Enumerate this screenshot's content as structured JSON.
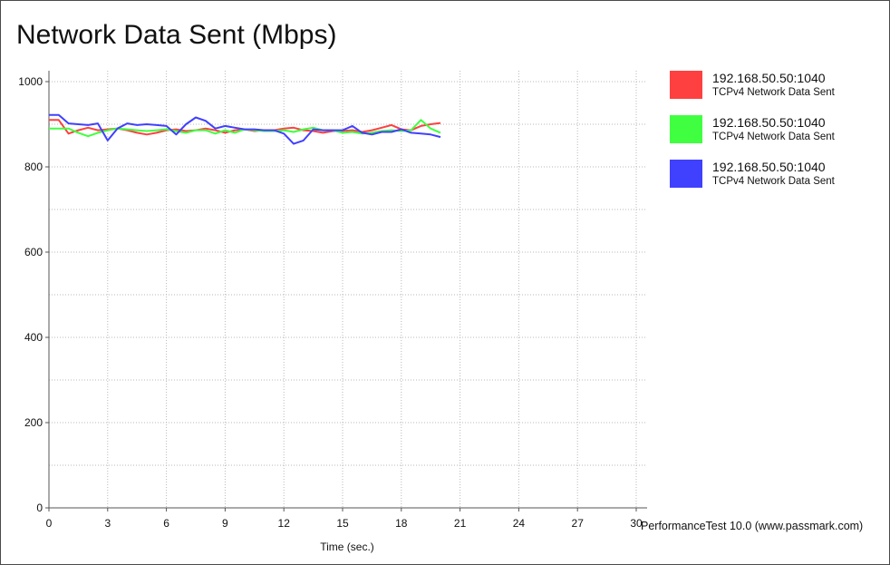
{
  "title": "Network Data Sent (Mbps)",
  "watermark": "PerformanceTest 10.0 (www.passmark.com)",
  "chart_data": {
    "type": "line",
    "title": "Network Data Sent (Mbps)",
    "xlabel": "Time (sec.)",
    "ylabel": "",
    "xlim": [
      0,
      30
    ],
    "ylim": [
      0,
      1000
    ],
    "xticks": [
      0,
      3,
      6,
      9,
      12,
      15,
      18,
      21,
      24,
      27,
      30
    ],
    "yticks": [
      0,
      200,
      400,
      600,
      800,
      1000
    ],
    "grid": true,
    "legend_position": "right",
    "series": [
      {
        "name": "192.168.50.50:1040",
        "description": "TCPv4 Network Data Sent",
        "color": "#ff4040",
        "x": [
          0,
          0.5,
          1,
          1.5,
          2,
          2.5,
          3,
          3.5,
          4,
          4.5,
          5,
          5.5,
          6,
          6.5,
          7,
          7.5,
          8,
          8.5,
          9,
          9.5,
          10,
          10.5,
          11,
          11.5,
          12,
          12.5,
          13,
          13.5,
          14,
          14.5,
          15,
          15.5,
          16,
          16.5,
          17,
          17.5,
          18,
          18.5,
          19,
          19.5,
          20
        ],
        "y": [
          910,
          910,
          878,
          886,
          892,
          886,
          888,
          890,
          886,
          880,
          876,
          880,
          886,
          888,
          884,
          886,
          890,
          886,
          880,
          886,
          888,
          884,
          886,
          886,
          890,
          892,
          886,
          884,
          880,
          884,
          884,
          886,
          882,
          886,
          892,
          898,
          888,
          886,
          896,
          900,
          903
        ]
      },
      {
        "name": "192.168.50.50:1040",
        "description": "TCPv4 Network Data Sent",
        "color": "#40ff40",
        "x": [
          0,
          0.5,
          1,
          1.5,
          2,
          2.5,
          3,
          3.5,
          4,
          4.5,
          5,
          5.5,
          6,
          6.5,
          7,
          7.5,
          8,
          8.5,
          9,
          9.5,
          10,
          10.5,
          11,
          11.5,
          12,
          12.5,
          13,
          13.5,
          14,
          14.5,
          15,
          15.5,
          16,
          16.5,
          17,
          17.5,
          18,
          18.5,
          19,
          19.5,
          20
        ],
        "y": [
          890,
          890,
          890,
          880,
          872,
          880,
          886,
          890,
          888,
          886,
          884,
          886,
          888,
          884,
          880,
          886,
          886,
          878,
          886,
          880,
          888,
          886,
          884,
          884,
          886,
          882,
          888,
          892,
          886,
          886,
          880,
          882,
          878,
          880,
          884,
          886,
          884,
          886,
          910,
          890,
          880
        ]
      },
      {
        "name": "192.168.50.50:1040",
        "description": "TCPv4 Network Data Sent",
        "color": "#4040ff",
        "x": [
          0,
          0.5,
          1,
          1.5,
          2,
          2.5,
          3,
          3.5,
          4,
          4.5,
          5,
          5.5,
          6,
          6.5,
          7,
          7.5,
          8,
          8.5,
          9,
          9.5,
          10,
          10.5,
          11,
          11.5,
          12,
          12.5,
          13,
          13.5,
          14,
          14.5,
          15,
          15.5,
          16,
          16.5,
          17,
          17.5,
          18,
          18.5,
          19,
          19.5,
          20
        ],
        "y": [
          922,
          922,
          902,
          900,
          898,
          902,
          862,
          890,
          902,
          898,
          900,
          898,
          896,
          876,
          900,
          916,
          908,
          890,
          896,
          892,
          888,
          888,
          886,
          886,
          878,
          854,
          862,
          888,
          886,
          886,
          886,
          896,
          880,
          876,
          882,
          882,
          888,
          880,
          878,
          876,
          870
        ]
      }
    ]
  }
}
